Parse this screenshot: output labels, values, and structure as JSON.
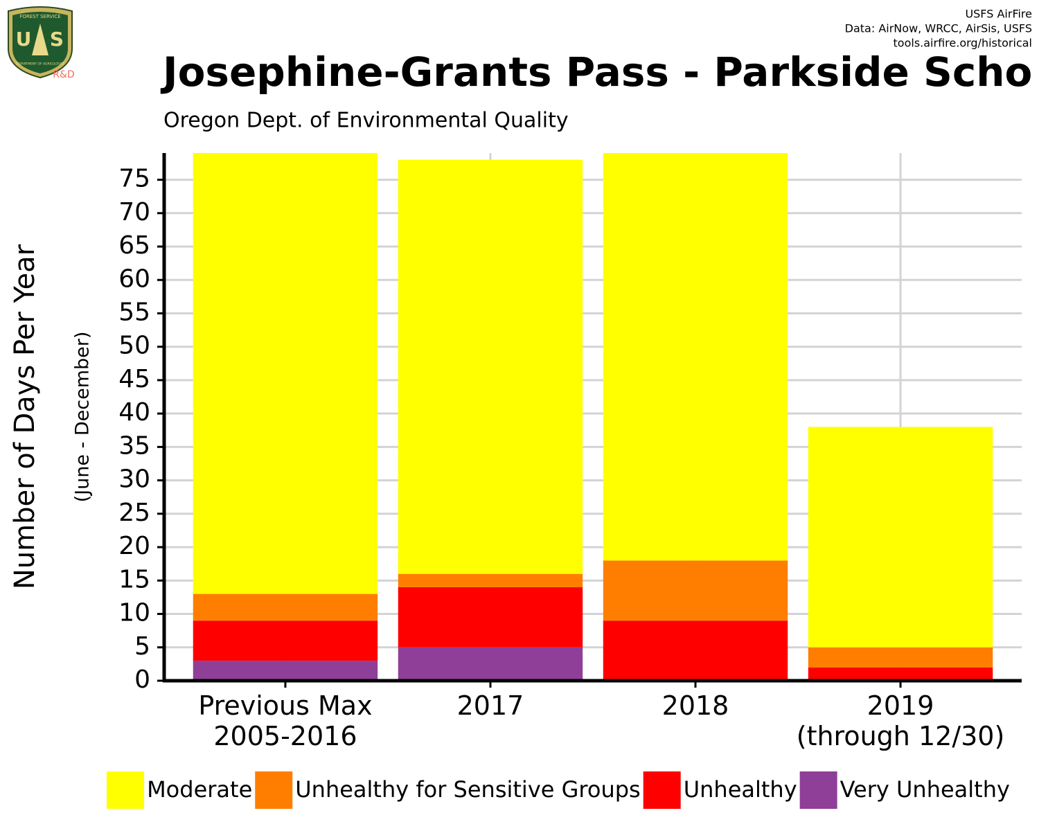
{
  "chart_data": {
    "type": "stacked_bar",
    "title": "Josephine-Grants Pass - Parkside Scho",
    "subtitle": "Oregon Dept. of Environmental Quality",
    "source_lines": [
      "USFS AirFire",
      "Data: AirNow, WRCC, AirSis, USFS",
      "tools.airfire.org/historical"
    ],
    "logo": {
      "top": "FOREST SERVICE",
      "left": "U",
      "right": "S",
      "bottom": "DEPARTMENT OF AGRICULTURE",
      "badge": "R&D"
    },
    "y_label": "Number of Days Per Year",
    "y_sublabel": "(June - December)",
    "categories": [
      "Previous Max\n2005-2016",
      "2017",
      "2018",
      "2019\n(through 12/30)"
    ],
    "series": [
      {
        "name": "Moderate",
        "color": "#ffff00",
        "values": [
          66,
          62,
          61,
          33
        ]
      },
      {
        "name": "Unhealthy for Sensitive Groups",
        "color": "#ff7e00",
        "values": [
          4,
          2,
          9,
          3
        ]
      },
      {
        "name": "Unhealthy",
        "color": "#ff0000",
        "values": [
          6,
          9,
          9,
          2
        ]
      },
      {
        "name": "Very Unhealthy",
        "color": "#8f3f97",
        "values": [
          3,
          5,
          0,
          0
        ]
      }
    ],
    "ylim": [
      0,
      79
    ],
    "yticks": [
      0,
      5,
      10,
      15,
      20,
      25,
      30,
      35,
      40,
      45,
      50,
      55,
      60,
      65,
      70,
      75
    ],
    "grid": true,
    "legend": "bottom"
  }
}
